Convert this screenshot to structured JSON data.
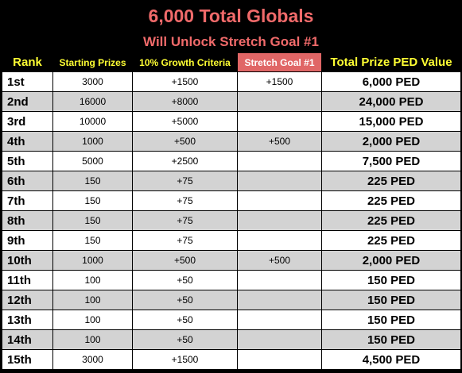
{
  "title": "6,000 Total Globals",
  "subtitle": "Will Unlock Stretch Goal #1",
  "columns": [
    "Rank",
    "Starting Prizes",
    "10% Growth Criteria",
    "Stretch Goal #1",
    "Total Prize PED Value"
  ],
  "colors": {
    "background": "#000000",
    "title": "#f06a6a",
    "header_text": "#ffff33",
    "stretch_header_bg": "#e06666",
    "row_odd": "#ffffff",
    "row_even": "#d3d3d3"
  },
  "rows": [
    {
      "rank": "1st",
      "start": "3000",
      "growth": "+1500",
      "stretch": "+1500",
      "total": "6,000 PED"
    },
    {
      "rank": "2nd",
      "start": "16000",
      "growth": "+8000",
      "stretch": "",
      "total": "24,000 PED"
    },
    {
      "rank": "3rd",
      "start": "10000",
      "growth": "+5000",
      "stretch": "",
      "total": "15,000 PED"
    },
    {
      "rank": "4th",
      "start": "1000",
      "growth": "+500",
      "stretch": "+500",
      "total": "2,000 PED"
    },
    {
      "rank": "5th",
      "start": "5000",
      "growth": "+2500",
      "stretch": "",
      "total": "7,500 PED"
    },
    {
      "rank": "6th",
      "start": "150",
      "growth": "+75",
      "stretch": "",
      "total": "225 PED"
    },
    {
      "rank": "7th",
      "start": "150",
      "growth": "+75",
      "stretch": "",
      "total": "225 PED"
    },
    {
      "rank": "8th",
      "start": "150",
      "growth": "+75",
      "stretch": "",
      "total": "225 PED"
    },
    {
      "rank": "9th",
      "start": "150",
      "growth": "+75",
      "stretch": "",
      "total": "225 PED"
    },
    {
      "rank": "10th",
      "start": "1000",
      "growth": "+500",
      "stretch": "+500",
      "total": "2,000 PED"
    },
    {
      "rank": "11th",
      "start": "100",
      "growth": "+50",
      "stretch": "",
      "total": "150 PED"
    },
    {
      "rank": "12th",
      "start": "100",
      "growth": "+50",
      "stretch": "",
      "total": "150 PED"
    },
    {
      "rank": "13th",
      "start": "100",
      "growth": "+50",
      "stretch": "",
      "total": "150 PED"
    },
    {
      "rank": "14th",
      "start": "100",
      "growth": "+50",
      "stretch": "",
      "total": "150 PED"
    },
    {
      "rank": "15th",
      "start": "3000",
      "growth": "+1500",
      "stretch": "",
      "total": "4,500 PED"
    }
  ]
}
